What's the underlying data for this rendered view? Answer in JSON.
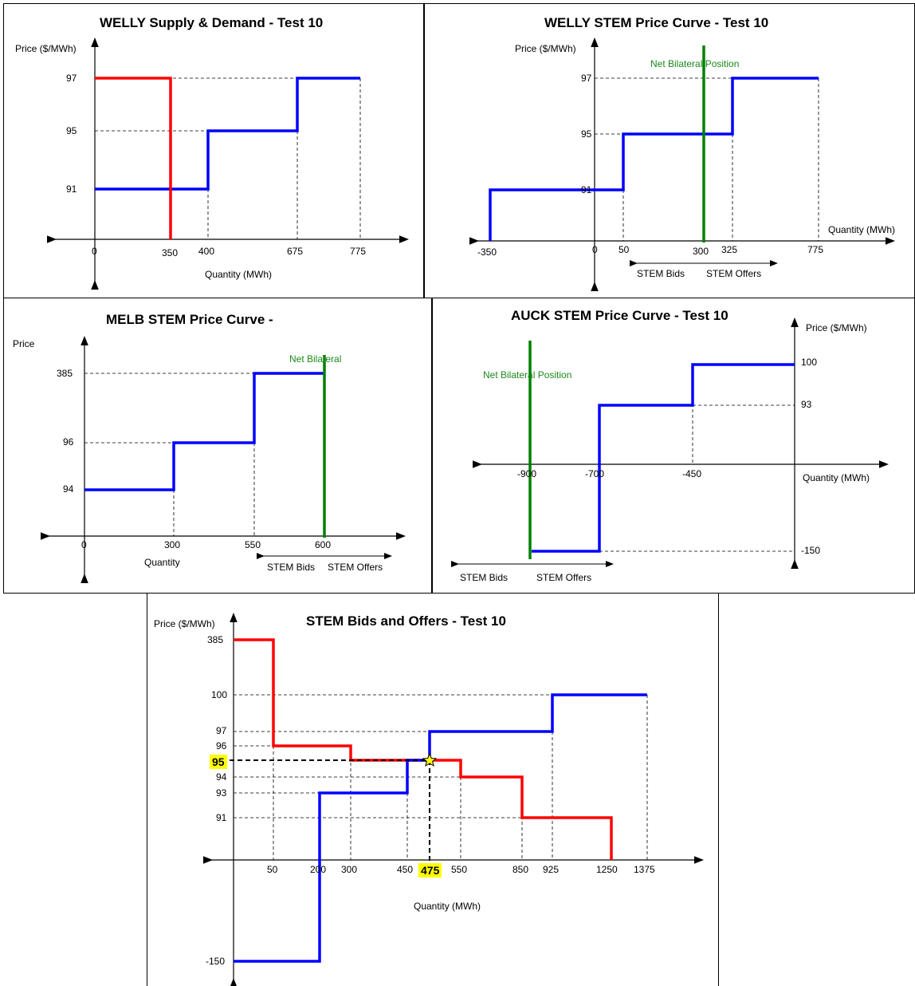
{
  "colors": {
    "supply": "#0000ff",
    "demand": "#ff0000",
    "bilateral": "#008000",
    "highlight": "#ffff00"
  },
  "charts": [
    {
      "id": "welly-sd",
      "title": "WELLY Supply & Demand - Test 10",
      "ylabel": "Price ($/MWh)",
      "xlabel": "Quantity (MWh)"
    },
    {
      "id": "welly-stem",
      "title": "WELLY STEM Price Curve - Test 10",
      "ylabel": "Price ($/MWh)",
      "xlabel": "Quantity (MWh)",
      "bilateral_label": "Net Bilateral Position",
      "bids_label": "STEM Bids",
      "offers_label": "STEM Offers"
    },
    {
      "id": "melb-stem",
      "title": "MELB STEM Price Curve -",
      "ylabel": "Price",
      "xlabel": "Quantity",
      "bilateral_label": "Net Bilateral",
      "bids_label": "STEM Bids",
      "offers_label": "STEM Offers"
    },
    {
      "id": "auck-stem",
      "title": "AUCK STEM Price Curve - Test 10",
      "ylabel": "Price ($/MWh)",
      "xlabel": "Quantity (MWh)",
      "bilateral_label": "Net Bilateral Position",
      "bids_label": "STEM Bids",
      "offers_label": "STEM Offers"
    },
    {
      "id": "stem-all",
      "title": "STEM Bids and Offers - Test 10",
      "ylabel": "Price ($/MWh)",
      "xlabel": "Quantity (MWh)",
      "clearing_price": "95",
      "clearing_quantity": "475"
    }
  ],
  "chart_data": [
    {
      "type": "line",
      "title": "WELLY Supply & Demand - Test 10",
      "xlabel": "Quantity (MWh)",
      "ylabel": "Price ($/MWh)",
      "x_ticks": [
        "0",
        "350",
        "400",
        "675",
        "775"
      ],
      "y_ticks": [
        "91",
        "95",
        "97"
      ],
      "series": [
        {
          "color": "#0000ff",
          "points": [
            [
              0,
              91
            ],
            [
              400,
              91
            ],
            [
              400,
              95
            ],
            [
              675,
              95
            ],
            [
              675,
              97
            ],
            [
              775,
              97
            ]
          ]
        },
        {
          "color": "#ff0000",
          "points": [
            [
              0,
              97
            ],
            [
              350,
              97
            ],
            [
              350,
              "axis"
            ]
          ]
        }
      ]
    },
    {
      "type": "line",
      "title": "WELLY STEM Price Curve - Test 10",
      "xlabel": "Quantity (MWh)",
      "ylabel": "Price ($/MWh)",
      "x_ticks": [
        "-350",
        "0",
        "50",
        "300",
        "325",
        "775"
      ],
      "y_ticks": [
        "91",
        "95",
        "97"
      ],
      "series": [
        {
          "color": "#0000ff",
          "points": [
            [
              -350,
              "axis"
            ],
            [
              -350,
              91
            ],
            [
              50,
              91
            ],
            [
              50,
              95
            ],
            [
              325,
              95
            ],
            [
              325,
              97
            ],
            [
              775,
              97
            ]
          ]
        },
        {
          "name": "Net Bilateral Position",
          "color": "#008000",
          "vertical_at": 300
        }
      ]
    },
    {
      "type": "line",
      "title": "MELB STEM Price Curve -",
      "xlabel": "Quantity",
      "ylabel": "Price",
      "x_ticks": [
        "0",
        "300",
        "550",
        "600"
      ],
      "y_ticks": [
        "94",
        "96",
        "385"
      ],
      "series": [
        {
          "color": "#0000ff",
          "points": [
            [
              0,
              94
            ],
            [
              300,
              94
            ],
            [
              300,
              96
            ],
            [
              550,
              96
            ],
            [
              550,
              385
            ],
            [
              600,
              385
            ]
          ]
        },
        {
          "name": "Net Bilateral",
          "color": "#008000",
          "vertical_at": 600
        }
      ]
    },
    {
      "type": "line",
      "title": "AUCK STEM Price Curve - Test 10",
      "xlabel": "Quantity (MWh)",
      "ylabel": "Price ($/MWh)",
      "x_ticks": [
        "-900",
        "-700",
        "-450"
      ],
      "y_ticks": [
        "-150",
        "93",
        "100"
      ],
      "series": [
        {
          "color": "#0000ff",
          "points": [
            [
              -900,
              -150
            ],
            [
              -700,
              -150
            ],
            [
              -700,
              93
            ],
            [
              -450,
              93
            ],
            [
              -450,
              100
            ],
            [
              0,
              100
            ]
          ]
        },
        {
          "name": "Net Bilateral Position",
          "color": "#008000",
          "vertical_at": -900
        }
      ]
    },
    {
      "type": "line",
      "title": "STEM Bids and Offers - Test 10",
      "xlabel": "Quantity (MWh)",
      "ylabel": "Price ($/MWh)",
      "x_ticks": [
        "50",
        "200",
        "300",
        "450",
        "475",
        "550",
        "850",
        "925",
        "1250",
        "1375"
      ],
      "y_ticks": [
        "-150",
        "91",
        "93",
        "94",
        "95",
        "96",
        "97",
        "100",
        "385"
      ],
      "series": [
        {
          "color": "#ff0000",
          "points": [
            [
              0,
              385
            ],
            [
              50,
              385
            ],
            [
              50,
              96
            ],
            [
              300,
              96
            ],
            [
              300,
              95
            ],
            [
              550,
              95
            ],
            [
              550,
              94
            ],
            [
              850,
              94
            ],
            [
              850,
              91
            ],
            [
              1250,
              91
            ],
            [
              1250,
              "axis"
            ]
          ]
        },
        {
          "color": "#0000ff",
          "points": [
            [
              0,
              -150
            ],
            [
              200,
              -150
            ],
            [
              200,
              93
            ],
            [
              450,
              93
            ],
            [
              450,
              95
            ],
            [
              475,
              95
            ],
            [
              475,
              97
            ],
            [
              925,
              97
            ],
            [
              925,
              100
            ],
            [
              1375,
              100
            ]
          ]
        }
      ],
      "clearing": {
        "quantity": 475,
        "price": 95
      }
    }
  ]
}
